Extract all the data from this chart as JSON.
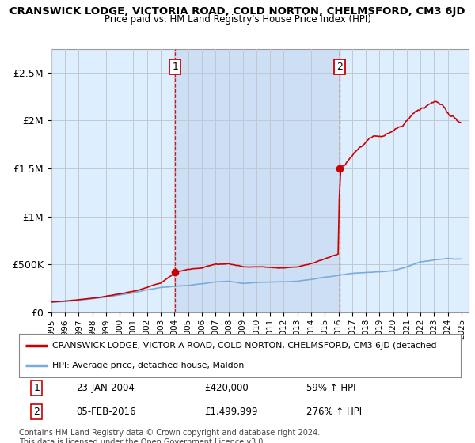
{
  "title": "CRANSWICK LODGE, VICTORIA ROAD, COLD NORTON, CHELMSFORD, CM3 6JD",
  "subtitle": "Price paid vs. HM Land Registry's House Price Index (HPI)",
  "ylabel_ticks": [
    "£0",
    "£500K",
    "£1M",
    "£1.5M",
    "£2M",
    "£2.5M"
  ],
  "ytick_vals": [
    0,
    500000,
    1000000,
    1500000,
    2000000,
    2500000
  ],
  "ylim": [
    0,
    2750000
  ],
  "xlim_start": 1995.0,
  "xlim_end": 2025.5,
  "sale1_year": 2004.06,
  "sale1_price": 420000,
  "sale2_year": 2016.09,
  "sale2_price": 1499999,
  "red_color": "#cc0000",
  "blue_color": "#7aabdb",
  "shade_color": "#ccdff5",
  "bg_color": "#ddeeff",
  "vline_color": "#cc0000",
  "grid_color": "#c0c8d0",
  "legend_line1": "CRANSWICK LODGE, VICTORIA ROAD, COLD NORTON, CHELMSFORD, CM3 6JD (detached",
  "legend_line2": "HPI: Average price, detached house, Maldon",
  "annotation1_date": "23-JAN-2004",
  "annotation1_price": "£420,000",
  "annotation1_hpi": "59% ↑ HPI",
  "annotation2_date": "05-FEB-2016",
  "annotation2_price": "£1,499,999",
  "annotation2_hpi": "276% ↑ HPI",
  "footer": "Contains HM Land Registry data © Crown copyright and database right 2024.\nThis data is licensed under the Open Government Licence v3.0."
}
